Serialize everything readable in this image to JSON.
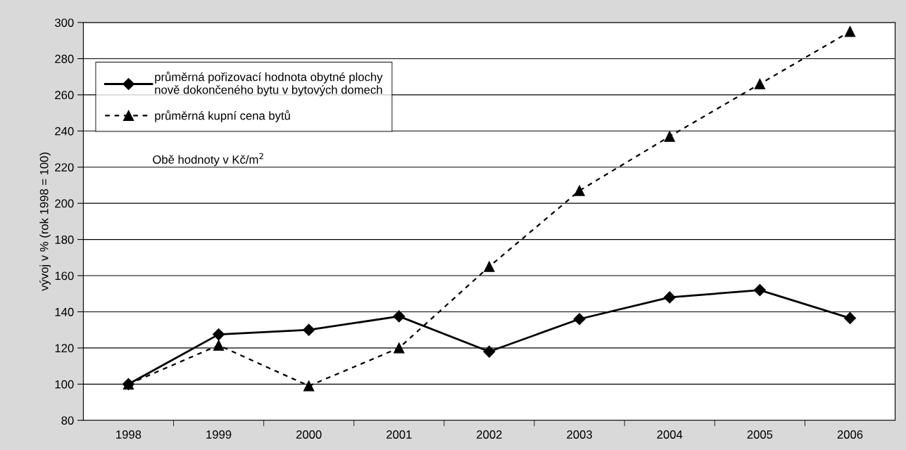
{
  "chart_data": {
    "type": "line",
    "ylabel": "vývoj v % (rok 1998 = 100)",
    "categories": [
      "1998",
      "1999",
      "2000",
      "2001",
      "2002",
      "2003",
      "2004",
      "2005",
      "2006"
    ],
    "series": [
      {
        "name": "průměrná pořizovací hodnota obytné plochy\nnově dokončeného bytu v bytových domech",
        "color": "#000000",
        "marker": "diamond",
        "line_style": "solid",
        "values": [
          100,
          127.5,
          130,
          137.5,
          118,
          136,
          148,
          152,
          136.5
        ]
      },
      {
        "name": "průměrná kupní cena bytů",
        "color": "#000000",
        "marker": "triangle",
        "line_style": "dashed",
        "values": [
          100,
          121.5,
          99,
          120,
          165,
          207,
          237,
          266,
          295
        ]
      }
    ],
    "ylim": [
      80,
      300
    ],
    "yticks": [
      80,
      100,
      120,
      140,
      160,
      180,
      200,
      220,
      240,
      260,
      280,
      300
    ],
    "grid": "y",
    "legend": "top left",
    "annotations": [
      "Obě hodnoty v Kč/m$^{2}$"
    ]
  }
}
